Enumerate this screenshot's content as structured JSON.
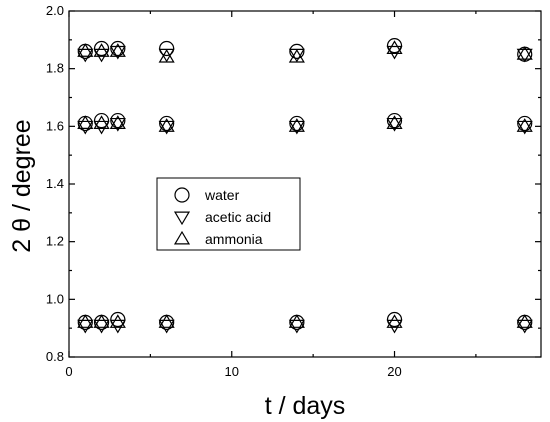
{
  "chart_data": {
    "type": "scatter",
    "xlabel": "t / days",
    "ylabel": "2 θ / degree",
    "xlim": [
      0,
      29
    ],
    "ylim": [
      0.8,
      2.0
    ],
    "xticks": [
      0,
      10,
      20
    ],
    "yticks": [
      0.8,
      1.0,
      1.2,
      1.4,
      1.6,
      1.8,
      2.0
    ],
    "xtick_labels": [
      "0",
      "10",
      "20"
    ],
    "ytick_labels": [
      "0.8",
      "1.0",
      "1.2",
      "1.4",
      "1.6",
      "1.8",
      "2.0"
    ],
    "grid": false,
    "legend_position": "center-left",
    "series": [
      {
        "name": "water",
        "marker": "circle",
        "points": [
          [
            1,
            0.92
          ],
          [
            2,
            0.92
          ],
          [
            3,
            0.93
          ],
          [
            6,
            0.92
          ],
          [
            14,
            0.92
          ],
          [
            20,
            0.93
          ],
          [
            28,
            0.92
          ],
          [
            1,
            1.61
          ],
          [
            2,
            1.62
          ],
          [
            3,
            1.62
          ],
          [
            6,
            1.61
          ],
          [
            14,
            1.61
          ],
          [
            20,
            1.62
          ],
          [
            28,
            1.61
          ],
          [
            1,
            1.86
          ],
          [
            2,
            1.87
          ],
          [
            3,
            1.87
          ],
          [
            6,
            1.87
          ],
          [
            14,
            1.86
          ],
          [
            20,
            1.88
          ],
          [
            28,
            1.85
          ]
        ]
      },
      {
        "name": "acetic acid",
        "marker": "triangle-down",
        "points": [
          [
            1,
            0.91
          ],
          [
            2,
            0.91
          ],
          [
            3,
            0.91
          ],
          [
            6,
            0.91
          ],
          [
            14,
            0.91
          ],
          [
            20,
            0.91
          ],
          [
            28,
            0.91
          ],
          [
            1,
            1.6
          ],
          [
            2,
            1.6
          ],
          [
            3,
            1.61
          ],
          [
            6,
            1.6
          ],
          [
            14,
            1.6
          ],
          [
            20,
            1.61
          ],
          [
            28,
            1.6
          ],
          [
            1,
            1.85
          ],
          [
            2,
            1.85
          ],
          [
            3,
            1.86
          ],
          [
            6,
            1.85
          ],
          [
            14,
            1.85
          ],
          [
            20,
            1.86
          ],
          [
            28,
            1.85
          ]
        ]
      },
      {
        "name": "ammonia",
        "marker": "triangle-up",
        "points": [
          [
            1,
            0.92
          ],
          [
            2,
            0.92
          ],
          [
            3,
            0.92
          ],
          [
            6,
            0.92
          ],
          [
            14,
            0.92
          ],
          [
            20,
            0.92
          ],
          [
            28,
            0.92
          ],
          [
            1,
            1.61
          ],
          [
            2,
            1.61
          ],
          [
            3,
            1.61
          ],
          [
            6,
            1.6
          ],
          [
            14,
            1.6
          ],
          [
            20,
            1.61
          ],
          [
            28,
            1.6
          ],
          [
            1,
            1.86
          ],
          [
            2,
            1.86
          ],
          [
            3,
            1.86
          ],
          [
            6,
            1.84
          ],
          [
            14,
            1.84
          ],
          [
            20,
            1.87
          ],
          [
            28,
            1.85
          ]
        ]
      }
    ]
  }
}
